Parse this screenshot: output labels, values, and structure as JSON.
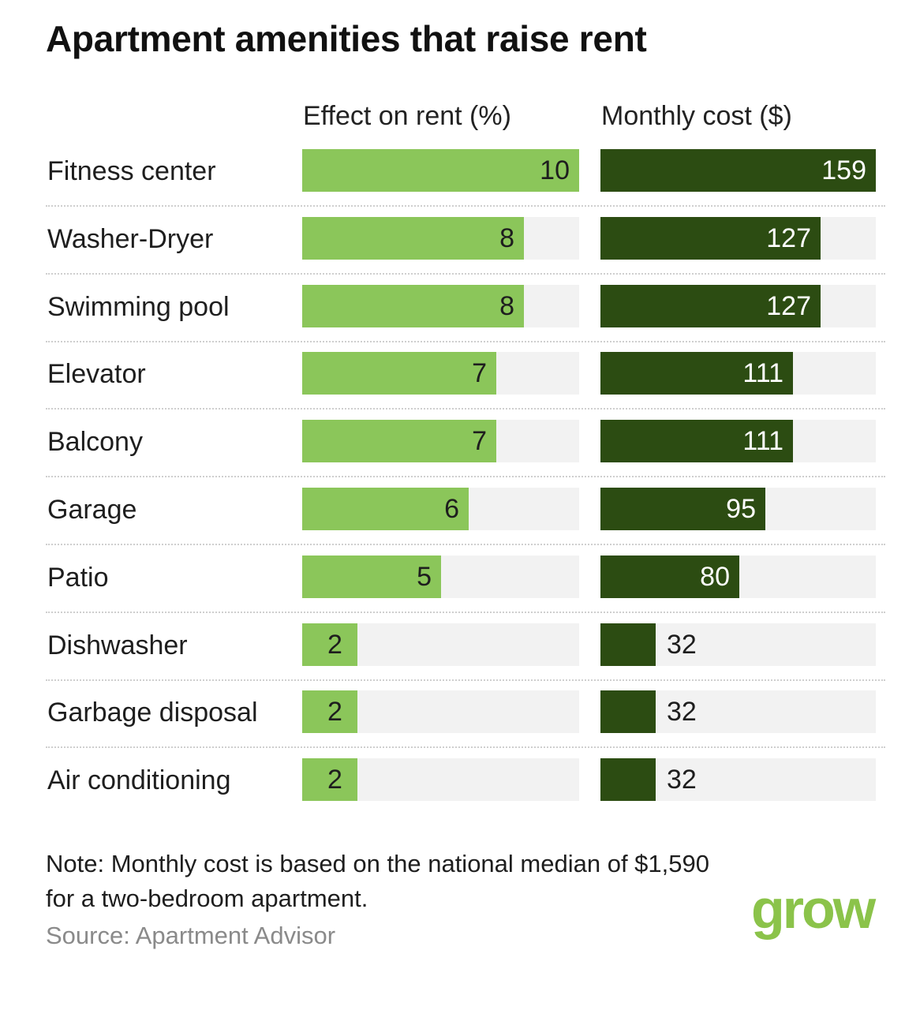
{
  "chart_data": {
    "type": "bar",
    "title": "Apartment amenities that raise rent",
    "categories": [
      "Fitness center",
      "Washer-Dryer",
      "Swimming pool",
      "Elevator",
      "Balcony",
      "Garage",
      "Patio",
      "Dishwasher",
      "Garbage disposal",
      "Air conditioning"
    ],
    "series": [
      {
        "name": "Effect on rent (%)",
        "values": [
          10,
          8,
          8,
          7,
          7,
          6,
          5,
          2,
          2,
          2
        ],
        "xlim": [
          0,
          10
        ],
        "color": "#8bc65a"
      },
      {
        "name": "Monthly cost ($)",
        "values": [
          159,
          127,
          127,
          111,
          111,
          95,
          80,
          32,
          32,
          32
        ],
        "xlim": [
          0,
          159
        ],
        "color": "#2c4c12"
      }
    ],
    "orientation": "horizontal",
    "data_labels": true,
    "grid": false
  },
  "note": "Note: Monthly cost is based on the national median of $1,590 for a two-bedroom apartment.",
  "source": "Source: Apartment Advisor",
  "logo_text": "grow",
  "colors": {
    "rent_bar": "#8bc65a",
    "cost_bar": "#2c4c12",
    "track": "#f2f2f2",
    "logo": "#8bc34a"
  }
}
